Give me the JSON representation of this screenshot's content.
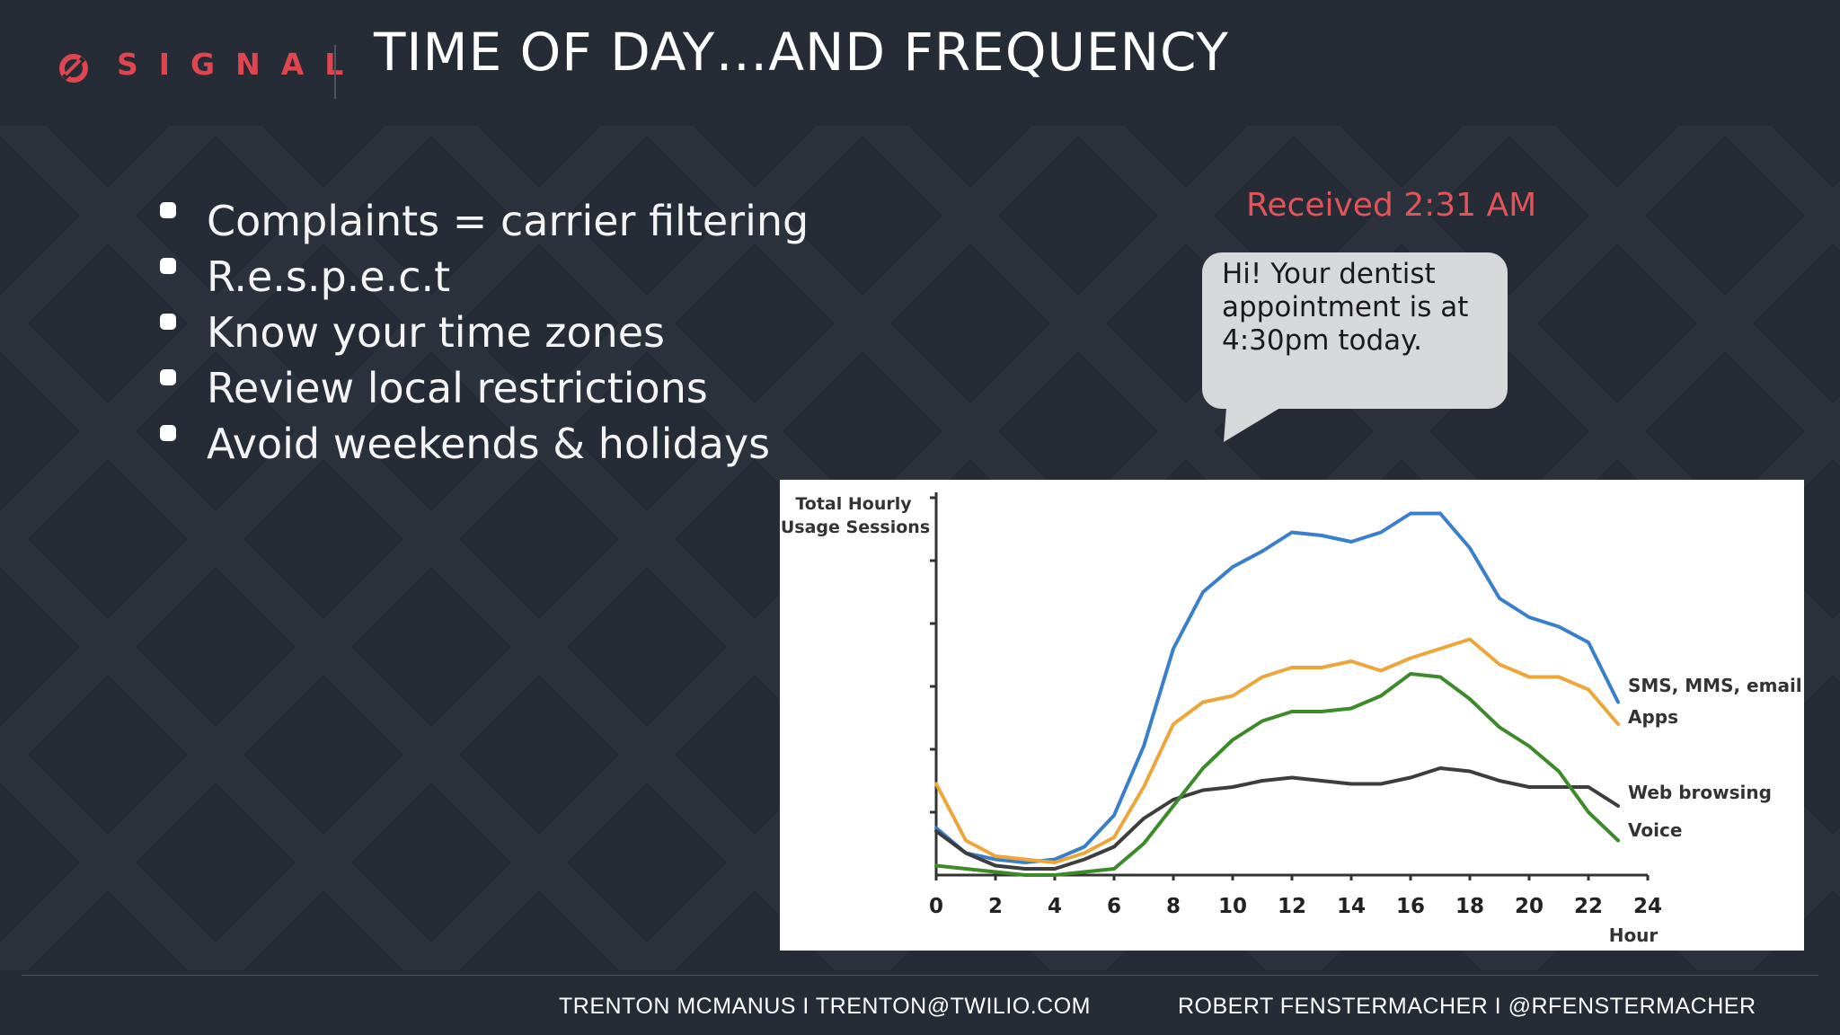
{
  "header": {
    "logo_text": "SIGNAL",
    "logo_icon": "signal-logo-icon",
    "title": "TIME OF DAY…AND FREQUENCY"
  },
  "bullets": [
    "Complaints = carrier filtering",
    "R.e.s.p.e.c.t",
    "Know your time zones",
    "Review local restrictions",
    "Avoid weekends & holidays"
  ],
  "message": {
    "received_label": "Received 2:31 AM",
    "text": "Hi! Your dentist appointment is at 4:30pm today."
  },
  "footer": {
    "left": "TRENTON MCMANUS I TRENTON@TWILIO.COM",
    "right": "ROBERT FENSTERMACHER I @RFENSTERMACHER"
  },
  "colors": {
    "background": "#262c35",
    "accent": "#e0464f",
    "sms": "#3a7fcb",
    "apps": "#eda63a",
    "web": "#3d3d3d",
    "voice": "#3c8a2a"
  },
  "chart_data": {
    "type": "line",
    "ylabel": "Total Hourly Usage Sessions",
    "xlabel": "Hour",
    "x": [
      0,
      1,
      2,
      3,
      4,
      5,
      6,
      7,
      8,
      9,
      10,
      11,
      12,
      13,
      14,
      15,
      16,
      17,
      18,
      19,
      20,
      21,
      22,
      23
    ],
    "xticks": [
      0,
      2,
      4,
      6,
      8,
      10,
      12,
      14,
      16,
      18,
      20,
      22,
      24
    ],
    "xlim": [
      0,
      24
    ],
    "ylim": [
      0,
      6
    ],
    "y_tick_count": 6,
    "series": [
      {
        "name": "SMS, MMS, email",
        "color": "#3a7fcb",
        "values": [
          0.75,
          0.35,
          0.25,
          0.2,
          0.25,
          0.45,
          0.95,
          2.05,
          3.6,
          4.5,
          4.9,
          5.15,
          5.45,
          5.4,
          5.3,
          5.45,
          5.75,
          5.75,
          5.2,
          4.4,
          4.1,
          3.95,
          3.7,
          2.75
        ]
      },
      {
        "name": "Apps",
        "color": "#eda63a",
        "values": [
          1.45,
          0.55,
          0.3,
          0.25,
          0.2,
          0.35,
          0.6,
          1.4,
          2.4,
          2.75,
          2.85,
          3.15,
          3.3,
          3.3,
          3.4,
          3.25,
          3.45,
          3.6,
          3.75,
          3.35,
          3.15,
          3.15,
          2.95,
          2.4
        ]
      },
      {
        "name": "Web browsing",
        "color": "#3d3d3d",
        "values": [
          0.7,
          0.35,
          0.15,
          0.1,
          0.1,
          0.25,
          0.45,
          0.9,
          1.2,
          1.35,
          1.4,
          1.5,
          1.55,
          1.5,
          1.45,
          1.45,
          1.55,
          1.7,
          1.65,
          1.5,
          1.4,
          1.4,
          1.4,
          1.1
        ]
      },
      {
        "name": "Voice",
        "color": "#3c8a2a",
        "values": [
          0.15,
          0.1,
          0.05,
          0.0,
          0.0,
          0.05,
          0.1,
          0.5,
          1.1,
          1.7,
          2.15,
          2.45,
          2.6,
          2.6,
          2.65,
          2.85,
          3.2,
          3.15,
          2.8,
          2.35,
          2.05,
          1.65,
          1.0,
          0.55
        ]
      }
    ]
  }
}
